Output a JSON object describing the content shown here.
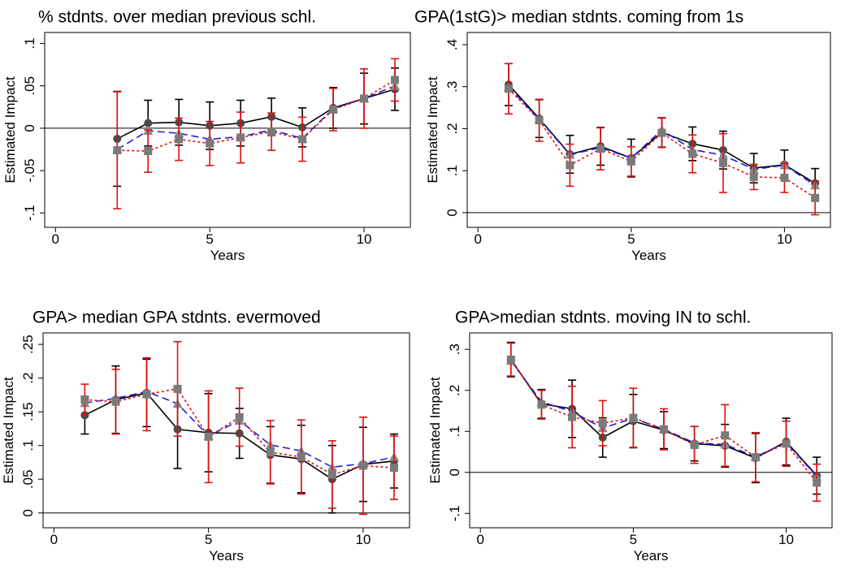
{
  "chart_data": [
    {
      "type": "line",
      "title": "% stdnts. over median previous schl.",
      "xlabel": "Years",
      "ylabel": "Estimated Impact",
      "xlim": [
        -0.35,
        11.5
      ],
      "xticks": [
        0,
        5,
        10
      ],
      "ylim": [
        -0.117,
        0.113
      ],
      "yticks": [
        {
          "value": -0.1,
          "label": "-.1"
        },
        {
          "value": -0.05,
          "label": "-.05"
        },
        0,
        {
          "value": 0.05,
          "label": ".05"
        },
        {
          "value": 0.1,
          "label": ".1"
        }
      ],
      "x": [
        2,
        3,
        4,
        5,
        6,
        7,
        8,
        9,
        10,
        11
      ],
      "series": [
        {
          "color": "#000000",
          "marker": "circle",
          "marker_color": "#4a4a4a",
          "dash": "solid",
          "values": [
            -0.0125,
            0.006,
            0.007,
            0.003,
            0.006,
            0.0135,
            0.001,
            0.024,
            0.035,
            0.046
          ],
          "errors": [
            0.056,
            0.027,
            0.027,
            0.028,
            0.027,
            0.022,
            0.023,
            0.024,
            0.03,
            0.025
          ]
        },
        {
          "color": "#1f1fd6",
          "marker": "triangle",
          "marker_color": "#8a8a8a",
          "dash": "dashed",
          "values": [
            -0.025,
            -0.003,
            -0.006,
            -0.013,
            -0.01,
            -0.002,
            -0.012,
            0.023,
            0.035,
            0.05
          ]
        },
        {
          "color": "#e01010",
          "marker": "square",
          "marker_color": "#7a7a7a",
          "dash": "dotted",
          "values": [
            -0.026,
            -0.027,
            -0.013,
            -0.018,
            -0.011,
            -0.004,
            -0.013,
            0.022,
            0.035,
            0.057
          ],
          "errors": [
            0.069,
            0.025,
            0.025,
            0.026,
            0.03,
            0.022,
            0.026,
            0.025,
            0.035,
            0.025
          ]
        }
      ]
    },
    {
      "type": "line",
      "title": "GPA(1stG)> median stdnts. coming from 1s",
      "xlabel": "Years",
      "ylabel": "Estimated Impact",
      "xlim": [
        -0.35,
        11.5
      ],
      "xticks": [
        0,
        5,
        10
      ],
      "ylim": [
        -0.035,
        0.429
      ],
      "yticks": [
        0,
        {
          "value": 0.1,
          "label": ".1"
        },
        {
          "value": 0.2,
          "label": ".2"
        },
        {
          "value": 0.3,
          "label": ".3"
        },
        {
          "value": 0.4,
          "label": ".4"
        }
      ],
      "x": [
        1,
        2,
        3,
        4,
        5,
        6,
        7,
        8,
        9,
        10,
        11
      ],
      "series": [
        {
          "color": "#000000",
          "marker": "circle",
          "marker_color": "#4a4a4a",
          "dash": "solid",
          "values": [
            0.305,
            0.224,
            0.139,
            0.158,
            0.13,
            0.191,
            0.164,
            0.149,
            0.106,
            0.114,
            0.07
          ],
          "errors": [
            0.05,
            0.045,
            0.045,
            0.045,
            0.045,
            0.035,
            0.04,
            0.045,
            0.035,
            0.035,
            0.035
          ]
        },
        {
          "color": "#1f1fd6",
          "marker": "triangle",
          "marker_color": "#8a8a8a",
          "dash": "dashed",
          "values": [
            0.3,
            0.222,
            0.138,
            0.155,
            0.13,
            0.197,
            0.15,
            0.137,
            0.103,
            0.113,
            0.065
          ]
        },
        {
          "color": "#e01010",
          "marker": "square",
          "marker_color": "#7a7a7a",
          "dash": "dotted",
          "values": [
            0.295,
            0.22,
            0.113,
            0.152,
            0.122,
            0.19,
            0.14,
            0.118,
            0.085,
            0.083,
            0.035
          ],
          "errors": [
            0.06,
            0.05,
            0.05,
            0.05,
            0.035,
            0.035,
            0.045,
            0.07,
            0.03,
            0.035,
            0.04
          ]
        }
      ]
    },
    {
      "type": "line",
      "title": "GPA> median GPA stdnts. evermoved",
      "xlabel": "Years",
      "ylabel": "Estimated Impact",
      "xlim": [
        -0.35,
        11.5
      ],
      "xticks": [
        0,
        5,
        10
      ],
      "ylim": [
        -0.022,
        0.267
      ],
      "yticks": [
        0,
        {
          "value": 0.05,
          "label": ".05"
        },
        {
          "value": 0.1,
          "label": ".1"
        },
        {
          "value": 0.15,
          "label": ".15"
        },
        {
          "value": 0.2,
          "label": ".2"
        },
        {
          "value": 0.25,
          "label": ".25"
        }
      ],
      "x": [
        1,
        2,
        3,
        4,
        5,
        6,
        7,
        8,
        9,
        10,
        11
      ],
      "series": [
        {
          "color": "#000000",
          "marker": "circle",
          "marker_color": "#4a4a4a",
          "dash": "solid",
          "values": [
            0.145,
            0.168,
            0.178,
            0.124,
            0.119,
            0.118,
            0.086,
            0.08,
            0.05,
            0.072,
            0.077
          ],
          "errors": [
            0.028,
            0.05,
            0.05,
            0.058,
            0.058,
            0.037,
            0.042,
            0.05,
            0.05,
            0.055,
            0.04
          ]
        },
        {
          "color": "#1f1fd6",
          "marker": "triangle",
          "marker_color": "#8a8a8a",
          "dash": "dashed",
          "values": [
            0.163,
            0.17,
            0.18,
            0.162,
            0.114,
            0.137,
            0.101,
            0.092,
            0.068,
            0.073,
            0.083
          ]
        },
        {
          "color": "#e01010",
          "marker": "square",
          "marker_color": "#7a7a7a",
          "dash": "dotted",
          "values": [
            0.168,
            0.165,
            0.176,
            0.184,
            0.113,
            0.142,
            0.09,
            0.083,
            0.057,
            0.07,
            0.067
          ],
          "errors": [
            0.023,
            0.048,
            0.054,
            0.07,
            0.068,
            0.043,
            0.047,
            0.055,
            0.05,
            0.072,
            0.047
          ]
        }
      ]
    },
    {
      "type": "line",
      "title": "GPA>median stdnts. moving IN to schl.",
      "xlabel": "Years",
      "ylabel": "Estimated Impact",
      "xlim": [
        -0.35,
        11.5
      ],
      "xticks": [
        0,
        5,
        10
      ],
      "ylim": [
        -0.135,
        0.34
      ],
      "yticks": [
        {
          "value": -0.1,
          "label": "-.1"
        },
        0,
        {
          "value": 0.1,
          "label": ".1"
        },
        {
          "value": 0.2,
          "label": ".2"
        },
        {
          "value": 0.3,
          "label": ".3"
        }
      ],
      "x": [
        1,
        2,
        3,
        4,
        5,
        6,
        7,
        8,
        9,
        10,
        11
      ],
      "series": [
        {
          "color": "#000000",
          "marker": "circle",
          "marker_color": "#4a4a4a",
          "dash": "solid",
          "values": [
            0.275,
            0.167,
            0.155,
            0.085,
            0.125,
            0.103,
            0.07,
            0.065,
            0.035,
            0.075,
            -0.008
          ],
          "errors": [
            0.042,
            0.035,
            0.07,
            0.048,
            0.065,
            0.045,
            0.042,
            0.052,
            0.06,
            0.057,
            0.045
          ]
        },
        {
          "color": "#1f1fd6",
          "marker": "triangle",
          "marker_color": "#8a8a8a",
          "dash": "dashed",
          "values": [
            0.272,
            0.172,
            0.148,
            0.108,
            0.132,
            0.105,
            0.072,
            0.068,
            0.038,
            0.073,
            -0.01
          ]
        },
        {
          "color": "#e01010",
          "marker": "square",
          "marker_color": "#7a7a7a",
          "dash": "dotted",
          "values": [
            0.275,
            0.165,
            0.135,
            0.12,
            0.133,
            0.105,
            0.067,
            0.09,
            0.037,
            0.07,
            -0.025
          ],
          "errors": [
            0.04,
            0.035,
            0.075,
            0.055,
            0.072,
            0.05,
            0.045,
            0.075,
            0.06,
            0.055,
            0.045
          ]
        }
      ]
    }
  ]
}
